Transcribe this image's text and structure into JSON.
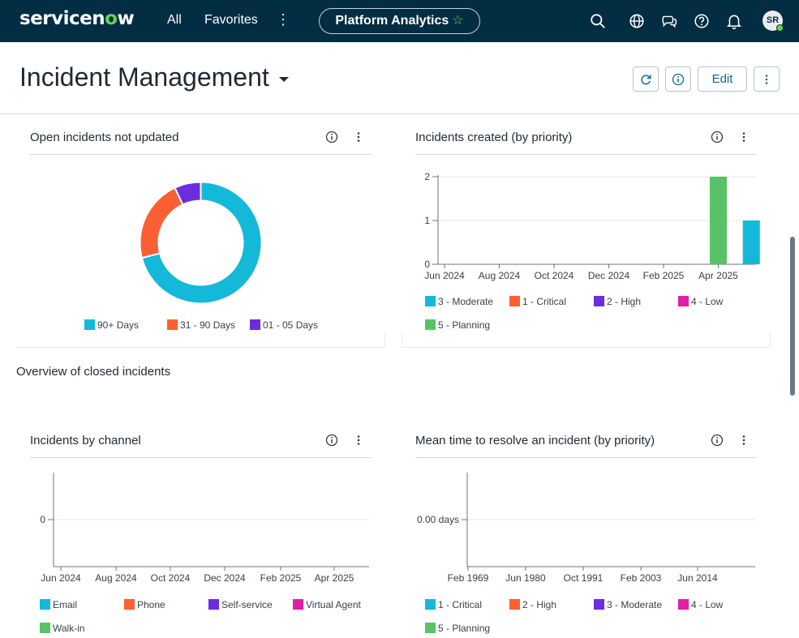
{
  "header": {
    "logo_pre": "servicen",
    "logo_o": "o",
    "logo_post": "w",
    "nav_all": "All",
    "nav_favorites": "Favorites",
    "nav_more": "⋮",
    "context_pill": "Platform Analytics",
    "pill_star": "☆",
    "avatar_initials": "SR",
    "icons": [
      "search-icon",
      "globe-icon",
      "chat-icon",
      "help-icon",
      "bell-icon"
    ]
  },
  "dashboard": {
    "title": "Incident Management",
    "edit_label": "Edit",
    "refresh_glyph": "↻",
    "info_glyph": "i",
    "more_glyph": "⋮"
  },
  "section": {
    "closed_title": "Overview of closed incidents"
  },
  "colors": {
    "cyan": "#14b8d9",
    "orange": "#fd5f34",
    "purple": "#6a2ee0",
    "magenta": "#e11ea6",
    "green": "#59c266",
    "accent": "#0a6c8d",
    "topbar": "#032d42"
  },
  "charts": {
    "open_not_updated": {
      "title": "Open incidents not updated"
    },
    "created_by_priority": {
      "title": "Incidents created (by priority)"
    },
    "by_channel": {
      "title": "Incidents by channel"
    },
    "mttr": {
      "title": "Mean time to resolve an incident (by priority)"
    }
  },
  "chart_data": [
    {
      "type": "pie",
      "title": "Open incidents not updated",
      "donut": true,
      "categories": [
        "90+ Days",
        "31 - 90 Days",
        "01 - 05 Days"
      ],
      "values": [
        71,
        22,
        7
      ],
      "colors": [
        "#14b8d9",
        "#fd5f34",
        "#6a2ee0"
      ],
      "legend": "bottom"
    },
    {
      "type": "bar",
      "title": "Incidents created (by priority)",
      "x_ticks": [
        "Jun 2024",
        "Aug 2024",
        "Oct 2024",
        "Dec 2024",
        "Feb 2025",
        "Apr 2025"
      ],
      "y_ticks": [
        "0",
        "1",
        "2"
      ],
      "ylim": [
        0,
        2
      ],
      "series": [
        {
          "name": "3 - Moderate",
          "color": "#14b8d9",
          "points": [
            {
              "x": "May 2025",
              "y": 1
            }
          ]
        },
        {
          "name": "1 - Critical",
          "color": "#fd5f34",
          "points": []
        },
        {
          "name": "2 - High",
          "color": "#6a2ee0",
          "points": []
        },
        {
          "name": "4 - Low",
          "color": "#e11ea6",
          "points": []
        },
        {
          "name": "5 - Planning",
          "color": "#59c266",
          "points": [
            {
              "x": "Apr 2025",
              "y": 2
            }
          ]
        }
      ],
      "grid": true,
      "legend": "bottom"
    },
    {
      "type": "line",
      "title": "Incidents by channel",
      "x_ticks": [
        "Jun 2024",
        "Aug 2024",
        "Oct 2024",
        "Dec 2024",
        "Feb 2025",
        "Apr 2025"
      ],
      "y_ticks": [
        "0"
      ],
      "series": [
        {
          "name": "Email",
          "color": "#14b8d9",
          "values": []
        },
        {
          "name": "Phone",
          "color": "#fd5f34",
          "values": []
        },
        {
          "name": "Self-service",
          "color": "#6a2ee0",
          "values": []
        },
        {
          "name": "Virtual Agent",
          "color": "#e11ea6",
          "values": []
        },
        {
          "name": "Walk-in",
          "color": "#59c266",
          "values": []
        }
      ],
      "legend": "bottom"
    },
    {
      "type": "line",
      "title": "Mean time to resolve an incident (by priority)",
      "x_ticks": [
        "Feb 1969",
        "Jun 1980",
        "Oct 1991",
        "Feb 2003",
        "Jun 2014"
      ],
      "y_ticks": [
        "0.00 days"
      ],
      "series": [
        {
          "name": "1 - Critical",
          "color": "#14b8d9",
          "values": []
        },
        {
          "name": "2 - High",
          "color": "#fd5f34",
          "values": []
        },
        {
          "name": "3 - Moderate",
          "color": "#6a2ee0",
          "values": []
        },
        {
          "name": "4 - Low",
          "color": "#e11ea6",
          "values": []
        },
        {
          "name": "5 - Planning",
          "color": "#59c266",
          "values": []
        }
      ],
      "legend": "bottom"
    }
  ]
}
